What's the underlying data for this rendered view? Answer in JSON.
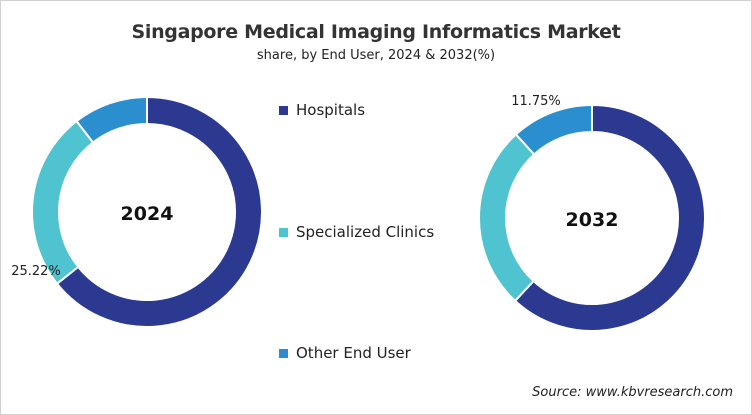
{
  "chart_data": {
    "type": "pie",
    "variant": "donut",
    "title": "Singapore Medical Imaging Informatics Market",
    "subtitle": "share, by End User, 2024 & 2032(%)",
    "categories": [
      "Hospitals",
      "Specialized Clinics",
      "Other End User"
    ],
    "colors": [
      "#2b3990",
      "#4fc3cf",
      "#2b8fcf"
    ],
    "legend_position": "center",
    "charts": [
      {
        "label": "2024",
        "values": [
          64.3,
          25.22,
          10.5
        ],
        "data_labels": {
          "1": "25.22%"
        }
      },
      {
        "label": "2032",
        "values": [
          61.9,
          26.35,
          11.75
        ],
        "data_labels": {
          "2": "11.75%"
        }
      }
    ],
    "source": "Source: www.kbvresearch.com"
  }
}
